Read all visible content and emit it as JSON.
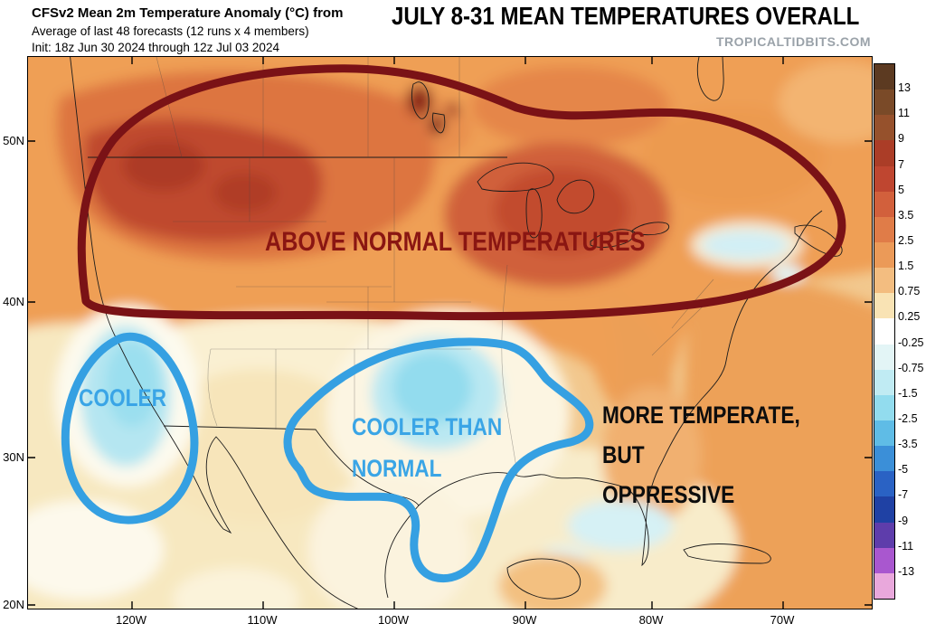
{
  "header": {
    "line1": "CFSv2 Mean 2m Temperature Anomaly (°C) from",
    "line2": "Average of last 48 forecasts (12 runs x 4 members)",
    "line3": "Init: 18z Jun 30 2024 through 12z Jul 03 2024",
    "big_title": "JULY 8-31 MEAN TEMPERATURES OVERALL",
    "watermark": "TROPICALTIDBITS.COM"
  },
  "map": {
    "annotations": {
      "above_normal": {
        "text": "ABOVE NORMAL TEMPERATURES",
        "color": "#8a1612"
      },
      "cooler_west": {
        "text": "COOLER",
        "color": "#3aa5e6"
      },
      "cooler_south": {
        "line1": "COOLER THAN",
        "line2": "NORMAL",
        "color": "#3aa5e6"
      },
      "southeast": {
        "line1": "MORE TEMPERATE,",
        "line2": "BUT",
        "line3": "OPPRESSIVE",
        "color": "#0d0d0d"
      }
    },
    "outline_colors": {
      "above_normal": "#7a1216",
      "cooler": "#35a0e2"
    }
  },
  "axes": {
    "latitude": [
      "50N",
      "40N",
      "30N",
      "20N"
    ],
    "longitude": [
      "120W",
      "110W",
      "100W",
      "90W",
      "80W",
      "70W"
    ]
  },
  "colorbar": {
    "levels": [
      "13",
      "11",
      "9",
      "7",
      "5",
      "3.5",
      "2.5",
      "1.5",
      "0.75",
      "0.25",
      "-0.25",
      "-0.75",
      "-1.5",
      "-2.5",
      "-3.5",
      "-5",
      "-7",
      "-9",
      "-11",
      "-13"
    ],
    "colors": [
      "#5c3a21",
      "#7a4a28",
      "#96512c",
      "#ab3d27",
      "#bf4630",
      "#d2603c",
      "#e07c48",
      "#eb9a58",
      "#f3bd80",
      "#f9e3b4",
      "#ffffff",
      "#e3f5f6",
      "#c0ebf3",
      "#92dcee",
      "#5fbce6",
      "#3b8fd8",
      "#2a62c4",
      "#1f41a4",
      "#5e3dab",
      "#a957cf",
      "#e9a8dc"
    ]
  },
  "chart_data": {
    "type": "heatmap",
    "title": "CFSv2 Mean 2m Temperature Anomaly (°C), July 8-31 mean",
    "units": "°C",
    "scale_levels": [
      13,
      11,
      9,
      7,
      5,
      3.5,
      2.5,
      1.5,
      0.75,
      0.25,
      -0.25,
      -0.75,
      -1.5,
      -2.5,
      -3.5,
      -5,
      -7,
      -9,
      -11,
      -13
    ],
    "regions": [
      {
        "area": "Northern Rockies / Northern Plains / Southern Canada / Great Lakes / Northeast",
        "anomaly_c": "+1.5 to +7",
        "label": "ABOVE NORMAL TEMPERATURES"
      },
      {
        "area": "California coast",
        "anomaly_c": "-0.25 to -1.5",
        "label": "COOLER"
      },
      {
        "area": "Texas / Southern Plains",
        "anomaly_c": "-0.25 to -1.5",
        "label": "COOLER THAN NORMAL"
      },
      {
        "area": "Southeast US / Gulf Coast",
        "anomaly_c": "0 to +1.5",
        "label": "MORE TEMPERATE, BUT OPPRESSIVE"
      }
    ]
  }
}
